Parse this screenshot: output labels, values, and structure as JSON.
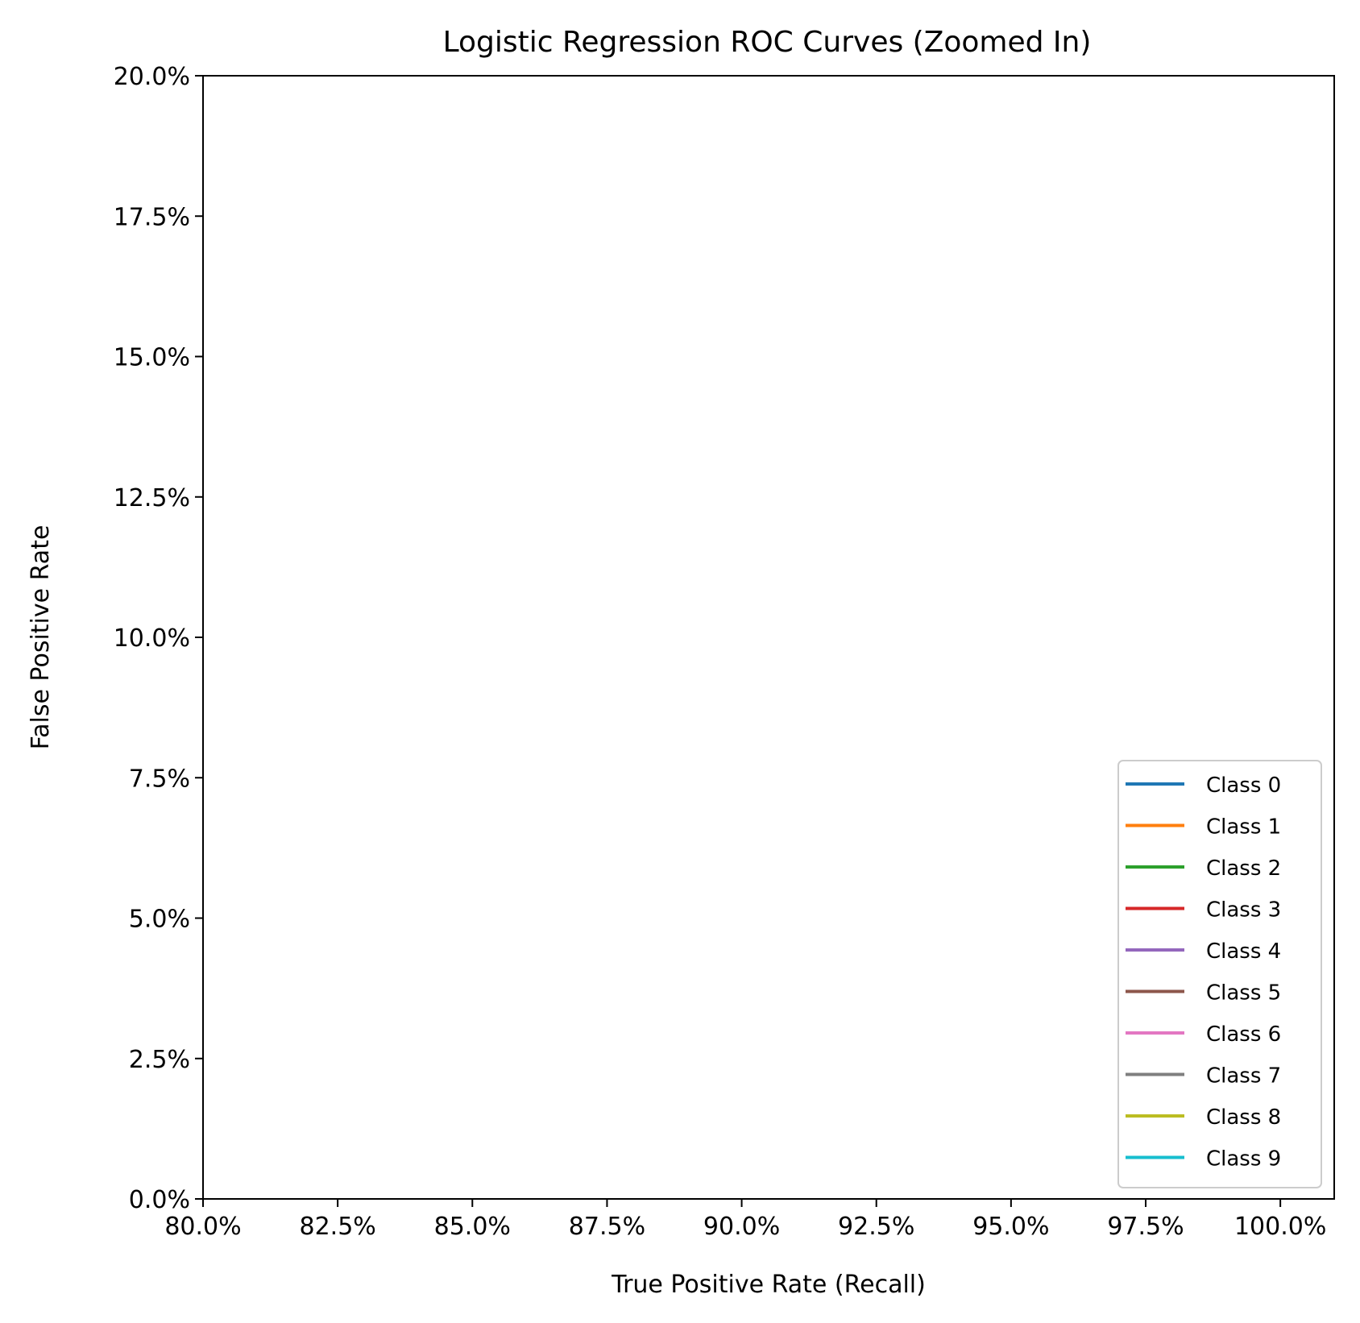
{
  "chart_data": {
    "type": "line",
    "title": "Logistic Regression ROC Curves (Zoomed In)",
    "xlabel": "True Positive Rate (Recall)",
    "ylabel": "False Positive Rate",
    "xlim": [
      0.8,
      1.01
    ],
    "ylim": [
      0.0,
      0.2
    ],
    "x_ticks": [
      0.8,
      0.825,
      0.85,
      0.875,
      0.9,
      0.925,
      0.95,
      0.975,
      1.0
    ],
    "x_tick_labels": [
      "80.0%",
      "82.5%",
      "85.0%",
      "87.5%",
      "90.0%",
      "92.5%",
      "95.0%",
      "97.5%",
      "100.0%"
    ],
    "y_ticks": [
      0.0,
      0.025,
      0.05,
      0.075,
      0.1,
      0.125,
      0.15,
      0.175,
      0.2
    ],
    "y_tick_labels": [
      "0.0%",
      "2.5%",
      "5.0%",
      "7.5%",
      "10.0%",
      "12.5%",
      "15.0%",
      "17.5%",
      "20.0%"
    ],
    "grid": false,
    "legend_position": "lower-right",
    "series": [
      {
        "name": "Class 0",
        "color": "#1f77b4",
        "x": [],
        "y": []
      },
      {
        "name": "Class 1",
        "color": "#ff7f0e",
        "x": [],
        "y": []
      },
      {
        "name": "Class 2",
        "color": "#2ca02c",
        "x": [],
        "y": []
      },
      {
        "name": "Class 3",
        "color": "#d62728",
        "x": [],
        "y": []
      },
      {
        "name": "Class 4",
        "color": "#9467bd",
        "x": [],
        "y": []
      },
      {
        "name": "Class 5",
        "color": "#8c564b",
        "x": [],
        "y": []
      },
      {
        "name": "Class 6",
        "color": "#e377c2",
        "x": [],
        "y": []
      },
      {
        "name": "Class 7",
        "color": "#7f7f7f",
        "x": [],
        "y": []
      },
      {
        "name": "Class 8",
        "color": "#bcbd22",
        "x": [],
        "y": []
      },
      {
        "name": "Class 9",
        "color": "#17becf",
        "x": [],
        "y": []
      }
    ]
  }
}
